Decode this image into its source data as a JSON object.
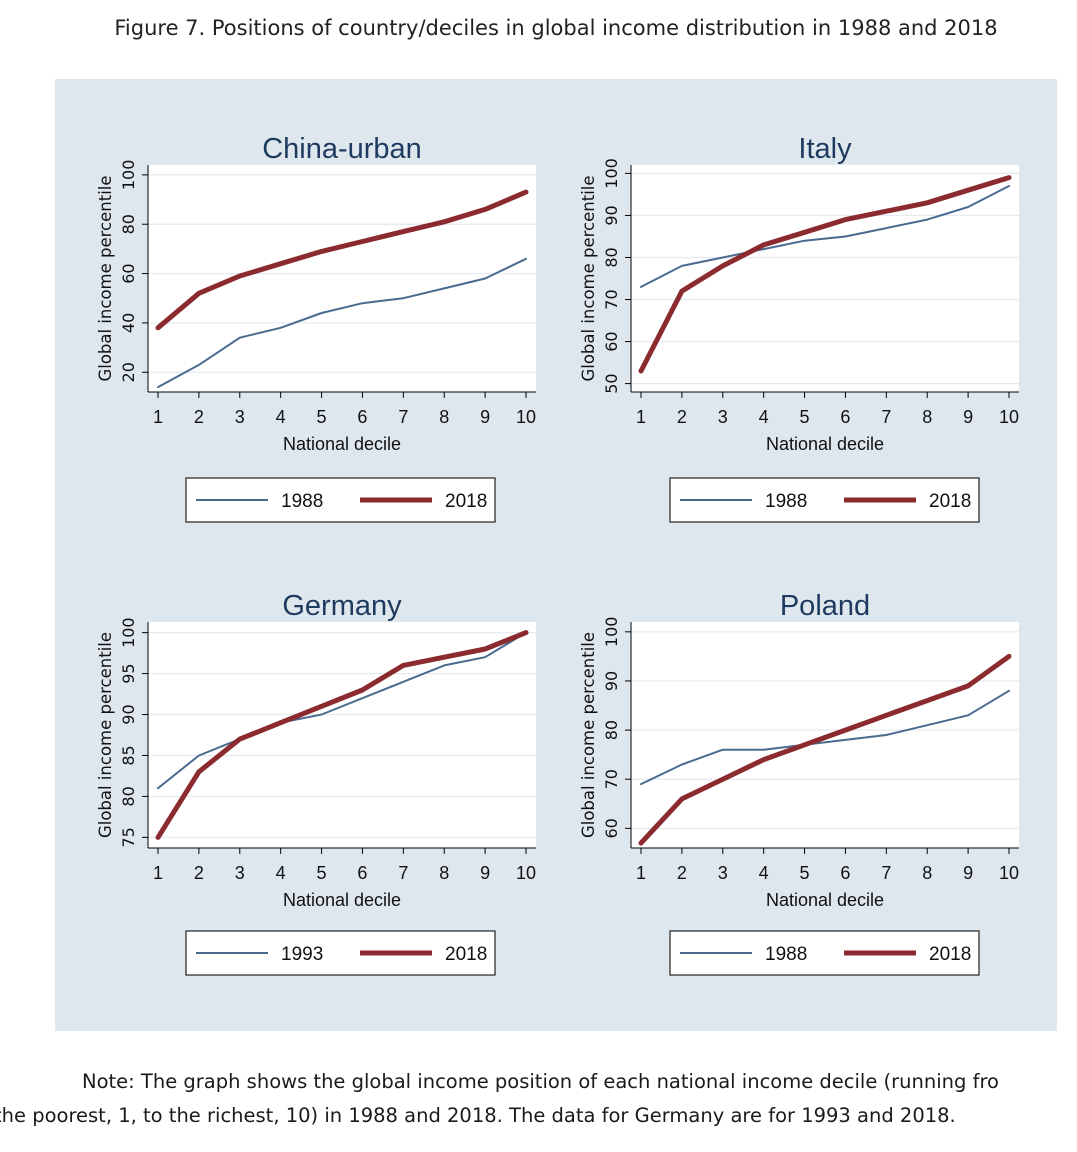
{
  "figure_title": "Figure 7. Positions of country/deciles in global income distribution in 1988 and 2018",
  "note": {
    "line1": "Note: The graph shows the global income position of each national income decile (running fro",
    "line2": "the poorest, 1, to the richest, 10) in 1988 and 2018. The data for Germany are for 1993 and 2018."
  },
  "colors": {
    "panel_background": "#dfe7ee",
    "plot_background": "#ffffff",
    "gridline": "#e4eaf0",
    "title": "#1f3a5f",
    "series_early": "#4a6b8f",
    "series_2018": "#8b2b2f"
  },
  "chart_data": [
    {
      "type": "line",
      "title": "China-urban",
      "xlabel": "National decile",
      "ylabel": "Global income percentile",
      "x": [
        1,
        2,
        3,
        4,
        5,
        6,
        7,
        8,
        9,
        10
      ],
      "xticks": [
        "1",
        "2",
        "3",
        "4",
        "5",
        "6",
        "7",
        "8",
        "9",
        "10"
      ],
      "ylim": [
        12,
        104
      ],
      "yticks": [
        20,
        40,
        60,
        80,
        100
      ],
      "grid": true,
      "legend_position": "bottom",
      "series": [
        {
          "name": "1988",
          "values": [
            14,
            23,
            34,
            38,
            44,
            48,
            50,
            54,
            58,
            66
          ]
        },
        {
          "name": "2018",
          "values": [
            38,
            52,
            59,
            64,
            69,
            73,
            77,
            81,
            86,
            93
          ]
        }
      ]
    },
    {
      "type": "line",
      "title": "Italy",
      "xlabel": "National decile",
      "ylabel": "Global income percentile",
      "x": [
        1,
        2,
        3,
        4,
        5,
        6,
        7,
        8,
        9,
        10
      ],
      "xticks": [
        "1",
        "2",
        "3",
        "4",
        "5",
        "6",
        "7",
        "8",
        "9",
        "10"
      ],
      "ylim": [
        48,
        102
      ],
      "yticks": [
        50,
        60,
        70,
        80,
        90,
        100
      ],
      "grid": true,
      "legend_position": "bottom",
      "series": [
        {
          "name": "1988",
          "values": [
            73,
            78,
            80,
            82,
            84,
            85,
            87,
            89,
            92,
            97
          ]
        },
        {
          "name": "2018",
          "values": [
            53,
            72,
            78,
            83,
            86,
            89,
            91,
            93,
            96,
            99
          ]
        }
      ]
    },
    {
      "type": "line",
      "title": "Germany",
      "xlabel": "National decile",
      "ylabel": "Global income percentile",
      "x": [
        1,
        2,
        3,
        4,
        5,
        6,
        7,
        8,
        9,
        10
      ],
      "xticks": [
        "1",
        "2",
        "3",
        "4",
        "5",
        "6",
        "7",
        "8",
        "9",
        "10"
      ],
      "ylim": [
        73.7,
        101.3
      ],
      "yticks": [
        75,
        80,
        85,
        90,
        95,
        100
      ],
      "grid": true,
      "legend_position": "bottom",
      "series": [
        {
          "name": "1993",
          "values": [
            81,
            85,
            87,
            89,
            90,
            92,
            94,
            96,
            97,
            100
          ]
        },
        {
          "name": "2018",
          "values": [
            75,
            83,
            87,
            89,
            91,
            93,
            96,
            97,
            98,
            100
          ]
        }
      ]
    },
    {
      "type": "line",
      "title": "Poland",
      "xlabel": "National decile",
      "ylabel": "Global income percentile",
      "x": [
        1,
        2,
        3,
        4,
        5,
        6,
        7,
        8,
        9,
        10
      ],
      "xticks": [
        "1",
        "2",
        "3",
        "4",
        "5",
        "6",
        "7",
        "8",
        "9",
        "10"
      ],
      "ylim": [
        56,
        102
      ],
      "yticks": [
        60,
        70,
        80,
        90,
        100
      ],
      "grid": true,
      "legend_position": "bottom",
      "series": [
        {
          "name": "1988",
          "values": [
            69,
            73,
            76,
            76,
            77,
            78,
            79,
            81,
            83,
            88
          ]
        },
        {
          "name": "2018",
          "values": [
            57,
            66,
            70,
            74,
            77,
            80,
            83,
            86,
            89,
            95
          ]
        }
      ]
    }
  ]
}
